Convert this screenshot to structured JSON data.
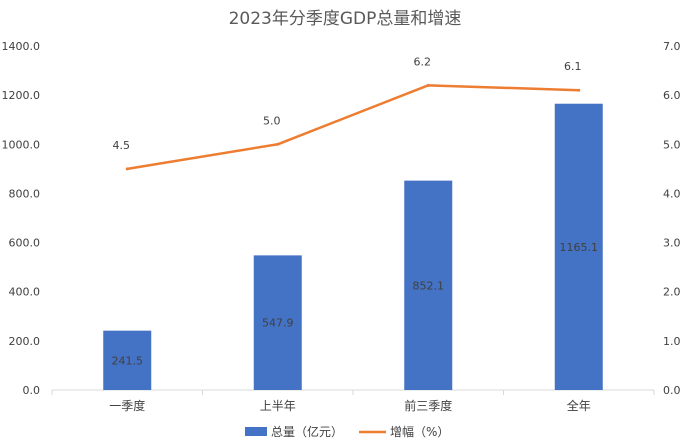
{
  "chart_data": {
    "type": "bar",
    "title": "2023年分季度GDP总量和增速",
    "categories": [
      "一季度",
      "上半年",
      "前三季度",
      "全年"
    ],
    "series": [
      {
        "name": "总量（亿元）",
        "type": "bar",
        "axis": "left",
        "color": "#4472C4",
        "values": [
          241.5,
          547.9,
          852.1,
          1165.1
        ]
      },
      {
        "name": "增幅（%）",
        "type": "line",
        "axis": "right",
        "color": "#ED7D31",
        "values": [
          4.5,
          5.0,
          6.2,
          6.1
        ]
      }
    ],
    "y_left": {
      "ylim": [
        0,
        1400
      ],
      "ticks": [
        "0.0",
        "200.0",
        "400.0",
        "600.0",
        "800.0",
        "1000.0",
        "1200.0",
        "1400.0"
      ]
    },
    "y_right": {
      "ylim": [
        0,
        7
      ],
      "ticks": [
        "0.0",
        "1.0",
        "2.0",
        "3.0",
        "4.0",
        "5.0",
        "6.0",
        "7.0"
      ]
    },
    "bar_labels": [
      "241.5",
      "547.9",
      "852.1",
      "1165.1"
    ],
    "line_labels": [
      "4.5",
      "5.0",
      "6.2",
      "6.1"
    ],
    "grid": false,
    "legend_position": "bottom"
  }
}
